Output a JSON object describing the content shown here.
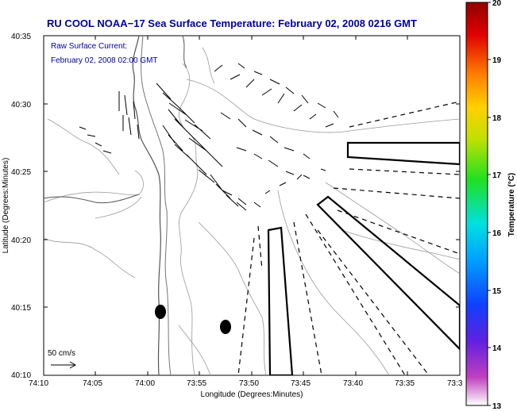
{
  "title": "RU COOL  NOAA−17  Sea Surface Temperature:  February 02, 2008 0216 GMT",
  "subtitle_line1": "Raw Surface Current:",
  "subtitle_line2": "February 02, 2008 02:00 GMT",
  "scale_label": "50 cm/s",
  "xlabel": "Longitude (Degrees:Minutes)",
  "ylabel": "Latitude (Degrees:Minutes)",
  "colorbar_label": "Temperature (°C)",
  "x_ticks": [
    "74:10",
    "74:05",
    "74:00",
    "73:55",
    "73:50",
    "73:45",
    "73:40",
    "73:35",
    "73:3"
  ],
  "y_ticks": [
    "40:35",
    "40:30",
    "40:25",
    "40:20",
    "40:15",
    "40:10"
  ],
  "colorbar_ticks": [
    "20",
    "19",
    "18",
    "17",
    "16",
    "15",
    "14",
    "13"
  ],
  "colors": {
    "title": "#0000a0",
    "contour": "#888888",
    "coast": "#555555"
  }
}
